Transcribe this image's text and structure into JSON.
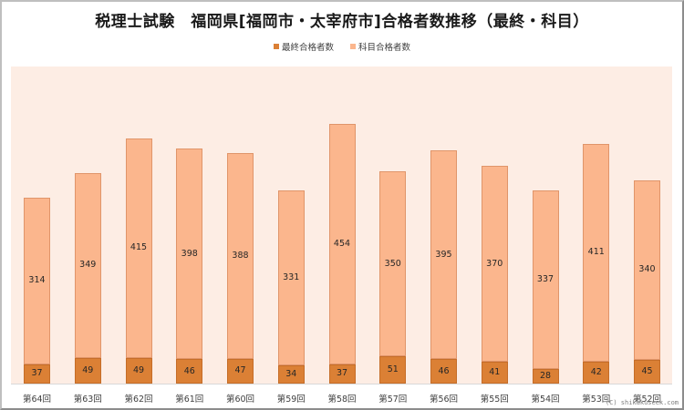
{
  "title": "税理士試験　福岡県[福岡市・太宰府市]合格者数推移（最終・科目）",
  "legend": [
    {
      "label": "最終合格者数",
      "color": "#db8035"
    },
    {
      "label": "科目合格者数",
      "color": "#fbb68d"
    }
  ],
  "credit": "(C) shikakuseek.com",
  "chart_data": {
    "type": "bar",
    "stacked": true,
    "title": "税理士試験　福岡県[福岡市・太宰府市]合格者数推移（最終・科目）",
    "xlabel": "",
    "ylabel": "",
    "legend_position": "top",
    "grid": false,
    "categories": [
      "第64回",
      "第63回",
      "第62回",
      "第61回",
      "第60回",
      "第59回",
      "第58回",
      "第57回",
      "第56回",
      "第55回",
      "第54回",
      "第53回",
      "第52回"
    ],
    "series": [
      {
        "name": "最終合格者数",
        "color": "#db8035",
        "values": [
          37,
          49,
          49,
          46,
          47,
          34,
          37,
          51,
          46,
          41,
          28,
          42,
          45
        ]
      },
      {
        "name": "科目合格者数",
        "color": "#fbb68d",
        "values": [
          314,
          349,
          415,
          398,
          388,
          331,
          454,
          350,
          395,
          370,
          337,
          411,
          340
        ]
      }
    ],
    "ylim": [
      0,
      600
    ]
  }
}
